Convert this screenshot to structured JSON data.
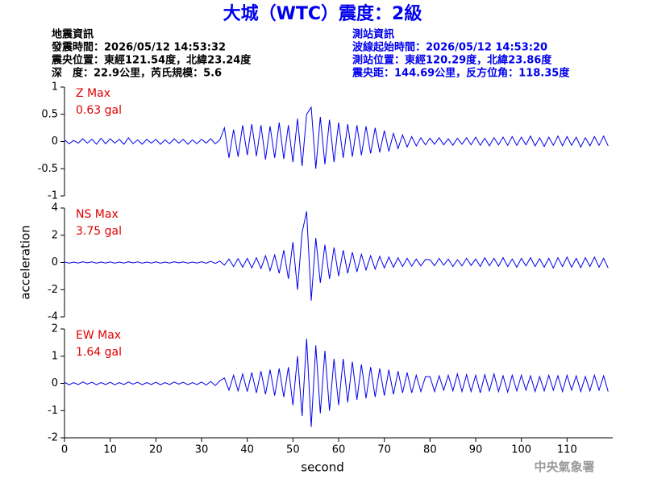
{
  "header": {
    "title": "大城（WTC）震度：2級",
    "event_info": [
      "地震資訊",
      "發震時間：2026/05/12 14:53:32",
      "震央位置：東經121.54度，北緯23.24度",
      "深　度：22.9公里，芮氏規模：5.6"
    ],
    "station_info": [
      "測站資訊",
      "波線起始時間：2026/05/12 14:53:20",
      "測站位置：東經120.29度，北緯23.86度",
      "震央距：144.69公里，反方位角：118.35度"
    ],
    "footer": "中央氣象署"
  },
  "chart_data": [
    {
      "type": "line",
      "annotation": [
        "Z Max",
        "0.63 gal"
      ],
      "xlim": [
        0,
        120
      ],
      "ylim": [
        -1,
        1
      ],
      "yticks": [
        -1,
        -0.5,
        0,
        0.5,
        1
      ],
      "x": [
        0,
        1,
        2,
        3,
        4,
        5,
        6,
        7,
        8,
        9,
        10,
        11,
        12,
        13,
        14,
        15,
        16,
        17,
        18,
        19,
        20,
        21,
        22,
        23,
        24,
        25,
        26,
        27,
        28,
        29,
        30,
        31,
        32,
        33,
        34,
        35,
        36,
        37,
        38,
        39,
        40,
        41,
        42,
        43,
        44,
        45,
        46,
        47,
        48,
        49,
        50,
        51,
        52,
        53,
        54,
        55,
        56,
        57,
        58,
        59,
        60,
        61,
        62,
        63,
        64,
        65,
        66,
        67,
        68,
        69,
        70,
        71,
        72,
        73,
        74,
        75,
        76,
        77,
        78,
        79,
        80,
        81,
        82,
        83,
        84,
        85,
        86,
        87,
        88,
        89,
        90,
        91,
        92,
        93,
        94,
        95,
        96,
        97,
        98,
        99,
        100,
        101,
        102,
        103,
        104,
        105,
        106,
        107,
        108,
        109,
        110,
        111,
        112,
        113,
        114,
        115,
        116,
        117,
        118,
        119
      ],
      "series": [
        {
          "color": "#0000ee",
          "values": [
            0.03,
            -0.04,
            0.02,
            -0.03,
            0.05,
            -0.03,
            0.04,
            -0.05,
            0.06,
            -0.04,
            0.05,
            -0.03,
            0.04,
            -0.05,
            0.07,
            -0.04,
            0.03,
            -0.05,
            0.04,
            -0.03,
            0.04,
            -0.05,
            0.03,
            -0.04,
            0.05,
            -0.03,
            0.04,
            -0.05,
            0.03,
            -0.04,
            0.04,
            -0.03,
            0.05,
            -0.04,
            0.03,
            0.25,
            -0.3,
            0.22,
            -0.28,
            0.3,
            -0.25,
            0.32,
            -0.27,
            0.3,
            -0.33,
            0.28,
            -0.3,
            0.35,
            -0.32,
            0.3,
            -0.38,
            0.42,
            -0.45,
            0.5,
            0.63,
            -0.5,
            0.45,
            -0.42,
            0.4,
            -0.38,
            0.35,
            -0.3,
            0.32,
            -0.28,
            0.3,
            -0.25,
            0.28,
            -0.22,
            0.25,
            -0.2,
            0.2,
            -0.18,
            0.15,
            -0.13,
            0.12,
            -0.1,
            0.09,
            -0.08,
            0.07,
            -0.06,
            0.06,
            -0.05,
            0.07,
            -0.06,
            0.05,
            -0.07,
            0.06,
            -0.05,
            0.07,
            -0.06,
            0.08,
            -0.07,
            0.06,
            -0.08,
            0.07,
            -0.06,
            0.08,
            -0.07,
            0.09,
            -0.07,
            0.08,
            -0.06,
            0.1,
            -0.08,
            0.07,
            -0.09,
            0.08,
            -0.07,
            0.1,
            -0.08,
            0.09,
            -0.07,
            0.08,
            -0.1,
            0.07,
            -0.08,
            0.09,
            -0.07,
            0.1,
            -0.08
          ]
        }
      ]
    },
    {
      "type": "line",
      "annotation": [
        "NS Max",
        "3.75 gal"
      ],
      "ylabel": "acceleration",
      "xlim": [
        0,
        120
      ],
      "ylim": [
        -4,
        4
      ],
      "yticks": [
        -4,
        -2,
        0,
        2,
        4
      ],
      "x": [
        0,
        1,
        2,
        3,
        4,
        5,
        6,
        7,
        8,
        9,
        10,
        11,
        12,
        13,
        14,
        15,
        16,
        17,
        18,
        19,
        20,
        21,
        22,
        23,
        24,
        25,
        26,
        27,
        28,
        29,
        30,
        31,
        32,
        33,
        34,
        35,
        36,
        37,
        38,
        39,
        40,
        41,
        42,
        43,
        44,
        45,
        46,
        47,
        48,
        49,
        50,
        51,
        52,
        53,
        54,
        55,
        56,
        57,
        58,
        59,
        60,
        61,
        62,
        63,
        64,
        65,
        66,
        67,
        68,
        69,
        70,
        71,
        72,
        73,
        74,
        75,
        76,
        77,
        78,
        79,
        80,
        81,
        82,
        83,
        84,
        85,
        86,
        87,
        88,
        89,
        90,
        91,
        92,
        93,
        94,
        95,
        96,
        97,
        98,
        99,
        100,
        101,
        102,
        103,
        104,
        105,
        106,
        107,
        108,
        109,
        110,
        111,
        112,
        113,
        114,
        115,
        116,
        117,
        118,
        119
      ],
      "series": [
        {
          "color": "#0000ee",
          "values": [
            0.04,
            -0.05,
            0.03,
            -0.04,
            0.05,
            -0.03,
            0.04,
            -0.05,
            0.03,
            -0.04,
            0.04,
            -0.05,
            0.03,
            -0.04,
            0.05,
            -0.03,
            0.04,
            -0.05,
            0.03,
            -0.04,
            0.04,
            -0.05,
            0.03,
            -0.04,
            0.05,
            -0.03,
            0.04,
            -0.05,
            0.03,
            -0.04,
            0.05,
            -0.06,
            0.08,
            -0.07,
            0.1,
            -0.2,
            0.25,
            -0.3,
            0.28,
            -0.35,
            0.3,
            -0.4,
            0.35,
            -0.45,
            0.5,
            -0.6,
            0.55,
            -0.8,
            0.9,
            -1.2,
            1.5,
            -2.0,
            2.2,
            3.75,
            -2.8,
            1.8,
            -1.5,
            1.3,
            -1.2,
            1.1,
            -1.0,
            0.9,
            -0.8,
            0.75,
            -0.7,
            0.6,
            -0.55,
            0.5,
            -0.5,
            0.45,
            -0.4,
            0.4,
            -0.35,
            0.35,
            -0.3,
            0.3,
            -0.28,
            0.25,
            -0.25,
            0.22,
            0.2,
            -0.25,
            0.3,
            -0.2,
            0.25,
            -0.3,
            0.2,
            -0.25,
            0.3,
            -0.22,
            0.25,
            -0.3,
            0.35,
            -0.25,
            0.3,
            -0.28,
            0.35,
            -0.3,
            0.25,
            -0.35,
            0.3,
            -0.25,
            0.35,
            -0.3,
            0.28,
            -0.35,
            0.3,
            -0.4,
            0.35,
            -0.3,
            0.4,
            -0.35,
            0.3,
            -0.38,
            0.35,
            -0.3,
            0.4,
            -0.35,
            0.3,
            -0.4
          ]
        }
      ]
    },
    {
      "type": "line",
      "annotation": [
        "EW Max",
        "1.64 gal"
      ],
      "xlabel": "second",
      "xlim": [
        0,
        120
      ],
      "ylim": [
        -2,
        2
      ],
      "yticks": [
        -2,
        -1,
        0,
        1,
        2
      ],
      "xticks": [
        0,
        10,
        20,
        30,
        40,
        50,
        60,
        70,
        80,
        90,
        100,
        110
      ],
      "x": [
        0,
        1,
        2,
        3,
        4,
        5,
        6,
        7,
        8,
        9,
        10,
        11,
        12,
        13,
        14,
        15,
        16,
        17,
        18,
        19,
        20,
        21,
        22,
        23,
        24,
        25,
        26,
        27,
        28,
        29,
        30,
        31,
        32,
        33,
        34,
        35,
        36,
        37,
        38,
        39,
        40,
        41,
        42,
        43,
        44,
        45,
        46,
        47,
        48,
        49,
        50,
        51,
        52,
        53,
        54,
        55,
        56,
        57,
        58,
        59,
        60,
        61,
        62,
        63,
        64,
        65,
        66,
        67,
        68,
        69,
        70,
        71,
        72,
        73,
        74,
        75,
        76,
        77,
        78,
        79,
        80,
        81,
        82,
        83,
        84,
        85,
        86,
        87,
        88,
        89,
        90,
        91,
        92,
        93,
        94,
        95,
        96,
        97,
        98,
        99,
        100,
        101,
        102,
        103,
        104,
        105,
        106,
        107,
        108,
        109,
        110,
        111,
        112,
        113,
        114,
        115,
        116,
        117,
        118,
        119
      ],
      "series": [
        {
          "color": "#0000ee",
          "values": [
            0.04,
            -0.05,
            0.03,
            -0.04,
            0.05,
            -0.03,
            0.04,
            -0.05,
            0.03,
            -0.04,
            0.04,
            -0.05,
            0.03,
            -0.04,
            0.05,
            -0.03,
            0.04,
            -0.05,
            0.03,
            -0.04,
            0.04,
            -0.05,
            0.03,
            -0.04,
            0.05,
            -0.03,
            0.04,
            -0.05,
            0.03,
            -0.04,
            0.05,
            -0.06,
            0.07,
            -0.08,
            0.1,
            0.2,
            -0.25,
            0.3,
            -0.28,
            0.35,
            -0.3,
            0.4,
            -0.35,
            0.45,
            -0.4,
            0.5,
            -0.45,
            0.55,
            -0.5,
            0.6,
            -0.8,
            1.0,
            -1.2,
            1.64,
            -1.6,
            1.4,
            -1.1,
            1.2,
            -1.0,
            0.9,
            -0.8,
            0.9,
            -0.7,
            0.8,
            -0.6,
            0.7,
            -0.55,
            0.6,
            -0.5,
            0.55,
            -0.45,
            0.5,
            -0.4,
            0.45,
            -0.35,
            0.4,
            -0.35,
            0.3,
            -0.3,
            0.25,
            0.25,
            -0.3,
            0.28,
            -0.25,
            0.3,
            -0.28,
            0.35,
            -0.3,
            0.32,
            -0.3,
            0.3,
            -0.35,
            0.32,
            -0.28,
            0.35,
            -0.3,
            0.28,
            -0.32,
            0.3,
            -0.28,
            0.3,
            -0.25,
            0.28,
            -0.3,
            0.25,
            -0.28,
            0.3,
            -0.25,
            0.28,
            -0.3,
            0.3,
            -0.25,
            0.28,
            -0.3,
            0.25,
            -0.28,
            0.3,
            -0.25,
            0.28,
            -0.3
          ]
        }
      ]
    }
  ]
}
